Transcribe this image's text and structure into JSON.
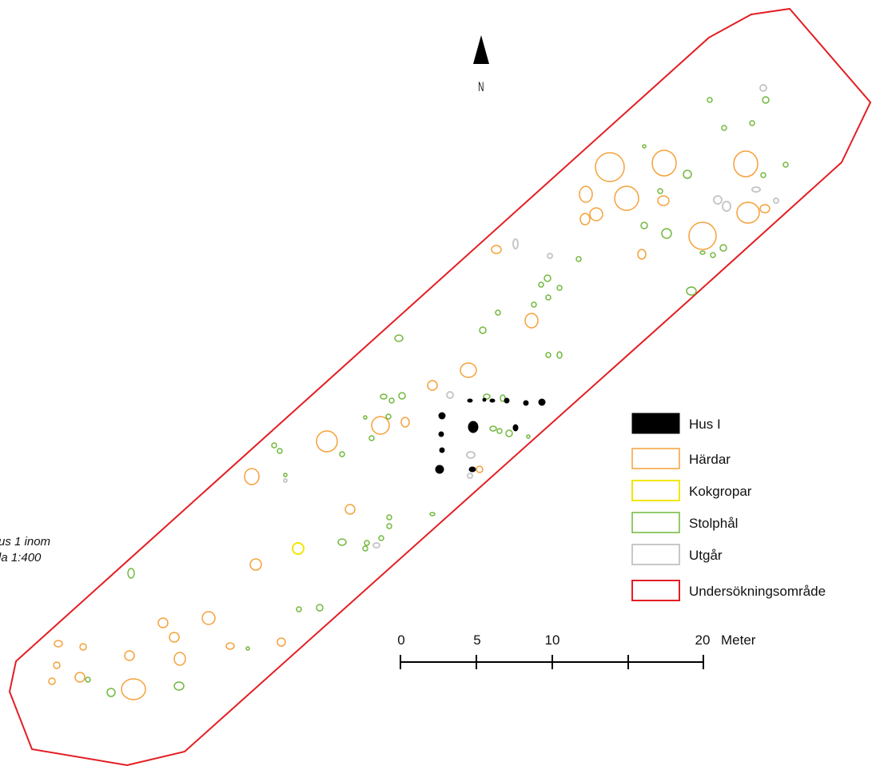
{
  "caption": {
    "line1": "us 1 inom",
    "line2": "la 1:400"
  },
  "north_arrow": {
    "icon": "north-arrow-icon",
    "label": "N"
  },
  "legend": {
    "items": [
      {
        "label": "Hus I",
        "style": "filled",
        "color": "#000000"
      },
      {
        "label": "Härdar",
        "style": "outline",
        "color": "#f5a13a"
      },
      {
        "label": "Kokgropar",
        "style": "outline",
        "color": "#f2e600"
      },
      {
        "label": "Stolphål",
        "style": "outline",
        "color": "#71b83d"
      },
      {
        "label": "Utgår",
        "style": "outline",
        "color": "#c8c8c8"
      },
      {
        "label": "Undersökningsområde",
        "style": "outline",
        "color": "#e31e24"
      }
    ]
  },
  "scale_bar": {
    "ticks": [
      "0",
      "5",
      "10",
      "20"
    ],
    "unit": "Meter"
  },
  "colors": {
    "boundary": "#e31e24",
    "hardar": "#f5a13a",
    "kokgropar": "#f2e600",
    "stolphal": "#71b83d",
    "utgar": "#c8c8c8",
    "hus": "#000000"
  }
}
